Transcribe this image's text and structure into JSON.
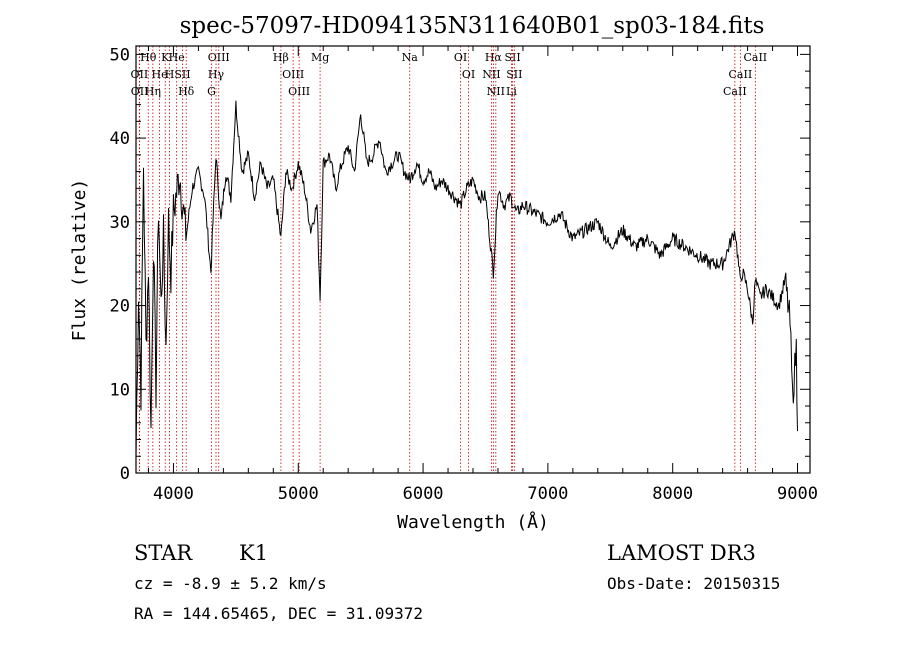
{
  "chart_data": {
    "type": "line",
    "title": "spec-57097-HD094135N311640B01_sp03-184.fits",
    "xlabel": "Wavelength (Å)",
    "ylabel": "Flux (relative)",
    "xlim": [
      3700,
      9100
    ],
    "ylim": [
      0,
      51
    ],
    "xticks": [
      4000,
      5000,
      6000,
      7000,
      8000,
      9000
    ],
    "yticks": [
      0,
      10,
      20,
      30,
      40,
      50
    ],
    "grid": false,
    "series": [
      {
        "name": "flux",
        "x": [
          3700,
          3720,
          3740,
          3760,
          3780,
          3800,
          3820,
          3840,
          3860,
          3880,
          3900,
          3920,
          3940,
          3960,
          3980,
          4000,
          4050,
          4100,
          4150,
          4200,
          4250,
          4300,
          4340,
          4380,
          4420,
          4460,
          4500,
          4550,
          4600,
          4650,
          4700,
          4750,
          4800,
          4861,
          4900,
          4950,
          5000,
          5050,
          5100,
          5150,
          5175,
          5200,
          5250,
          5300,
          5350,
          5400,
          5450,
          5500,
          5550,
          5600,
          5650,
          5700,
          5750,
          5800,
          5850,
          5893,
          5950,
          6000,
          6050,
          6100,
          6150,
          6200,
          6250,
          6300,
          6350,
          6400,
          6450,
          6500,
          6563,
          6600,
          6650,
          6700,
          6750,
          6800,
          6900,
          7000,
          7100,
          7200,
          7300,
          7400,
          7500,
          7600,
          7700,
          7800,
          7900,
          8000,
          8100,
          8200,
          8300,
          8400,
          8500,
          8540,
          8560,
          8600,
          8640,
          8662,
          8700,
          8750,
          8800,
          8850,
          8900,
          8940,
          8960,
          8990,
          9000
        ],
        "values": [
          2,
          22,
          10,
          37,
          15,
          25,
          5,
          28,
          10,
          32,
          20,
          28,
          15,
          30,
          24,
          31,
          36,
          28,
          34,
          36,
          33,
          24,
          38,
          30,
          36,
          33,
          44,
          36,
          38,
          33,
          37,
          34,
          35,
          28,
          36,
          34,
          37,
          34,
          29,
          32,
          21,
          37,
          38,
          34,
          37,
          39,
          36,
          43,
          37,
          38,
          40,
          36,
          37,
          38,
          36,
          35,
          37,
          35,
          36,
          34,
          35,
          34,
          33,
          32,
          34,
          35,
          33,
          33,
          24,
          34,
          32,
          33,
          31,
          32,
          31,
          30,
          31,
          28,
          29,
          30,
          27,
          29,
          27,
          28,
          26,
          28,
          27,
          26,
          25,
          25,
          29,
          23,
          24,
          22,
          18,
          23,
          21,
          22,
          21,
          20,
          23,
          18,
          9,
          15,
          5
        ]
      }
    ],
    "lines": [
      {
        "label": "Hθ",
        "x": 3798
      },
      {
        "label": "OII",
        "x": 3727
      },
      {
        "label": "OII",
        "x": 3729
      },
      {
        "label": "He",
        "x": 3889
      },
      {
        "label": "Hη",
        "x": 3835
      },
      {
        "label": "K",
        "x": 3934
      },
      {
        "label": "H",
        "x": 3969
      },
      {
        "label": "He",
        "x": 4026
      },
      {
        "label": "SII",
        "x": 4072
      },
      {
        "label": "Hδ",
        "x": 4102
      },
      {
        "label": "OIII",
        "x": 4363
      },
      {
        "label": "Hγ",
        "x": 4341
      },
      {
        "label": "G",
        "x": 4305
      },
      {
        "label": "Hβ",
        "x": 4861
      },
      {
        "label": "OIII",
        "x": 4959
      },
      {
        "label": "OIII",
        "x": 5007
      },
      {
        "label": "Mg",
        "x": 5175
      },
      {
        "label": "Na",
        "x": 5893
      },
      {
        "label": "OI",
        "x": 6300
      },
      {
        "label": "OI",
        "x": 6364
      },
      {
        "label": "Hα",
        "x": 6563
      },
      {
        "label": "NII",
        "x": 6548
      },
      {
        "label": "NII",
        "x": 6583
      },
      {
        "label": "SII",
        "x": 6717
      },
      {
        "label": "SII",
        "x": 6731
      },
      {
        "label": "Li",
        "x": 6708
      },
      {
        "label": "CaII",
        "x": 8662
      },
      {
        "label": "CaII",
        "x": 8542
      },
      {
        "label": "CaII",
        "x": 8498
      }
    ]
  },
  "info": {
    "object_class": "STAR",
    "subclass": "K1",
    "survey": "LAMOST DR3",
    "cz": "cz = -8.9 ± 5.2 km/s",
    "obs_date": "Obs-Date: 20150315",
    "coords": "RA = 144.65465, DEC =  31.09372"
  },
  "colors": {
    "line": "#000000",
    "marker_lines": "#cc0000",
    "axis": "#000000"
  }
}
